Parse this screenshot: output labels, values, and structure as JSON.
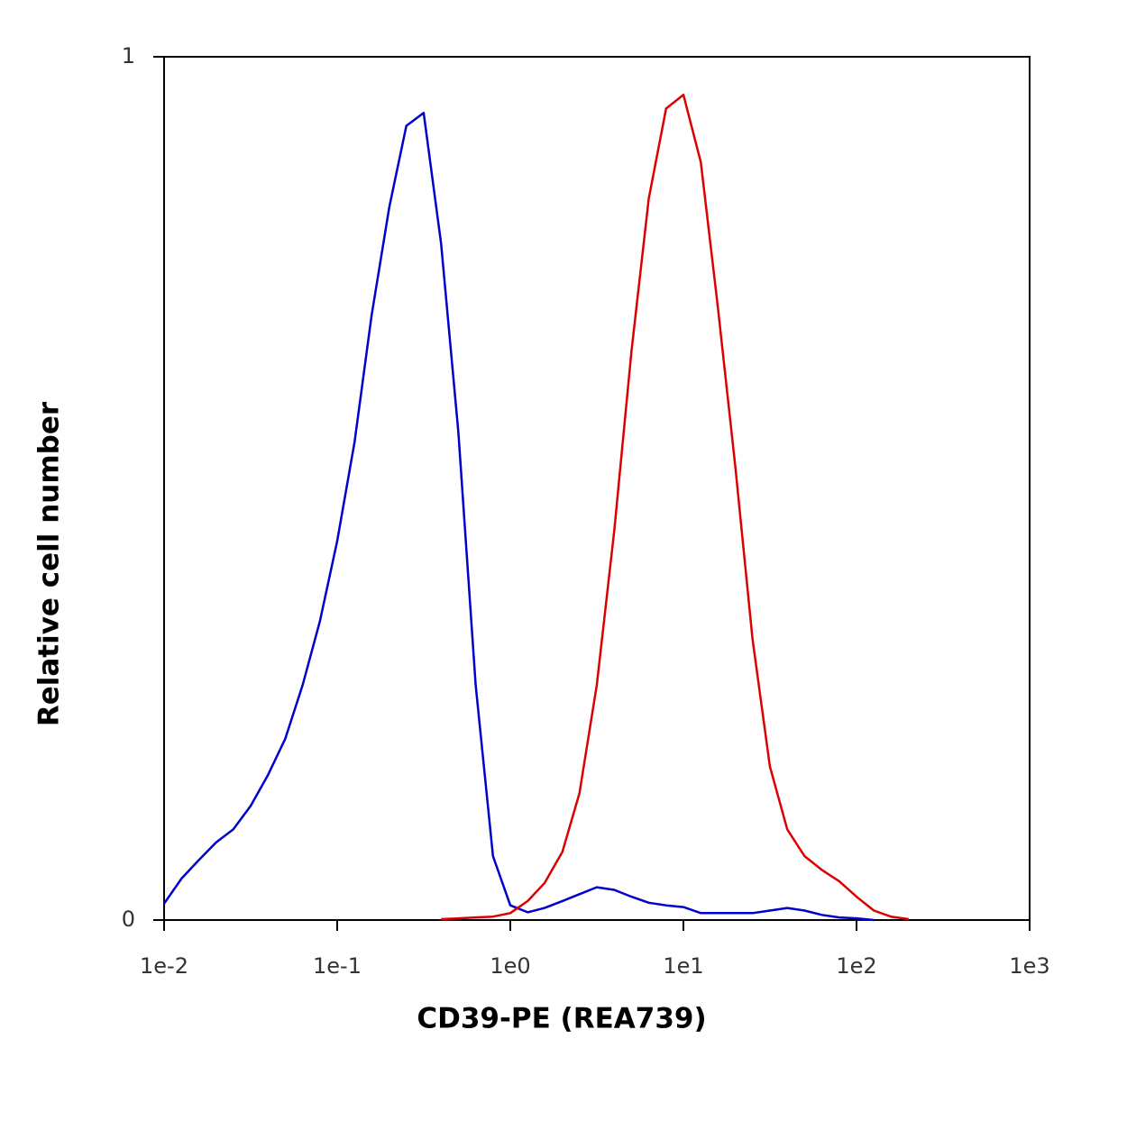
{
  "chart_data": {
    "type": "line",
    "x_label": "CD39-PE (REA739)",
    "y_label": "Relative cell number",
    "x_scale": "log",
    "x": [
      0.01,
      0.0126,
      0.0158,
      0.02,
      0.0251,
      0.0316,
      0.0398,
      0.0501,
      0.0631,
      0.0794,
      0.1,
      0.126,
      0.158,
      0.2,
      0.251,
      0.316,
      0.398,
      0.501,
      0.631,
      0.794,
      1,
      1.26,
      1.58,
      2,
      2.51,
      3.16,
      3.98,
      5.01,
      6.31,
      7.94,
      10,
      12.6,
      15.8,
      20,
      25.1,
      31.6,
      39.8,
      50.1,
      63.1,
      79.4,
      100,
      126,
      158,
      200
    ],
    "series": [
      {
        "color": "#0000cc",
        "values": [
          0.019,
          0.048,
          0.069,
          0.09,
          0.105,
          0.132,
          0.168,
          0.21,
          0.272,
          0.346,
          0.439,
          0.554,
          0.7,
          0.826,
          0.92,
          0.935,
          0.784,
          0.565,
          0.272,
          0.074,
          0.017,
          0.009,
          0.014,
          0.022,
          0.03,
          0.038,
          0.035,
          0.027,
          0.02,
          0.017,
          0.015,
          0.008,
          0.008,
          0.008,
          0.008,
          0.011,
          0.014,
          0.011,
          0.006,
          0.003,
          0.002,
          0,
          null,
          null
        ]
      },
      {
        "color": "#dd0000",
        "values": [
          null,
          null,
          null,
          null,
          null,
          null,
          null,
          null,
          null,
          null,
          null,
          null,
          null,
          null,
          null,
          null,
          0.001,
          0.002,
          0.003,
          0.004,
          0.008,
          0.022,
          0.043,
          0.079,
          0.147,
          0.272,
          0.45,
          0.659,
          0.836,
          0.94,
          0.956,
          0.878,
          0.711,
          0.523,
          0.325,
          0.178,
          0.105,
          0.074,
          0.058,
          0.045,
          0.027,
          0.011,
          0.004,
          0.001
        ]
      }
    ],
    "xlim": [
      0.01,
      1000
    ],
    "xticks": [
      {
        "value": 0.01,
        "label": "1e-2"
      },
      {
        "value": 0.1,
        "label": "1e-1"
      },
      {
        "value": 1,
        "label": "1e0"
      },
      {
        "value": 10,
        "label": "1e1"
      },
      {
        "value": 100,
        "label": "1e2"
      },
      {
        "value": 1000,
        "label": "1e3"
      }
    ],
    "ylim": [
      0,
      1
    ],
    "yticks": [
      0,
      1
    ]
  }
}
